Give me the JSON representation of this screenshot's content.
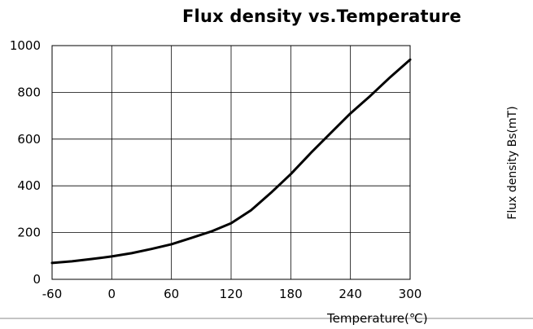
{
  "chart_data": {
    "type": "line",
    "title": "Flux density vs.Temperature",
    "xlabel": "Temperature(℃)",
    "ylabel": "Flux density Bs(mT)",
    "xlim": [
      -60,
      300
    ],
    "ylim": [
      0,
      1000
    ],
    "x_ticks": [
      "-60",
      "0",
      "60",
      "120",
      "180",
      "240",
      "300"
    ],
    "y_ticks": [
      "0",
      "200",
      "400",
      "600",
      "800",
      "1000"
    ],
    "grid": true,
    "series": [
      {
        "color": "#000000",
        "x": [
          -60,
          -40,
          -20,
          0,
          20,
          40,
          60,
          80,
          100,
          120,
          140,
          160,
          180,
          200,
          220,
          240,
          260,
          280,
          300
        ],
        "y": [
          70,
          77,
          87,
          98,
          112,
          130,
          150,
          177,
          205,
          240,
          295,
          370,
          450,
          540,
          625,
          710,
          785,
          865,
          940
        ]
      }
    ]
  }
}
